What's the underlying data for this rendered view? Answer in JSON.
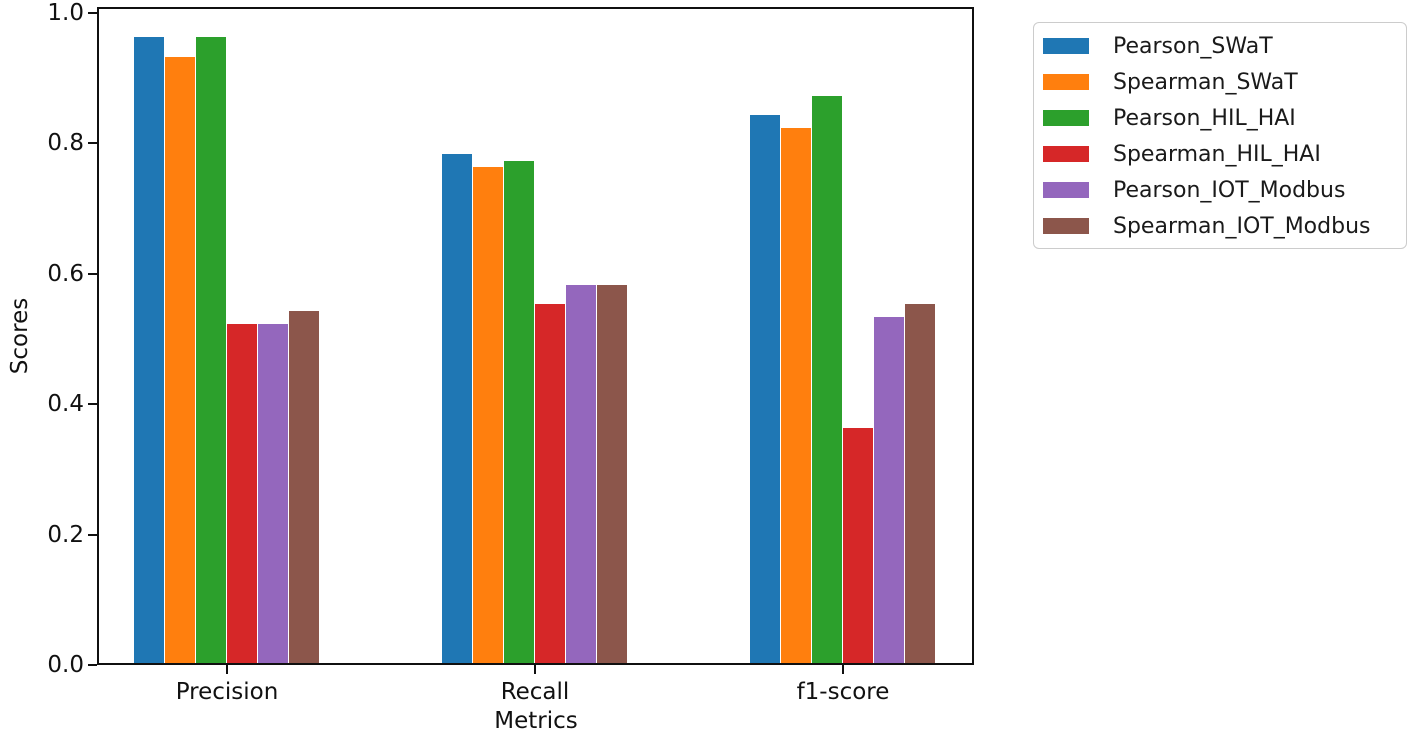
{
  "chart_data": {
    "type": "bar",
    "title": "",
    "xlabel": "Metrics",
    "ylabel": "Scores",
    "categories": [
      "Precision",
      "Recall",
      "f1-score"
    ],
    "series": [
      {
        "name": "Pearson_SWaT",
        "color": "#1f77b4",
        "values": [
          0.96,
          0.78,
          0.84
        ]
      },
      {
        "name": "Spearman_SWaT",
        "color": "#ff7f0e",
        "values": [
          0.93,
          0.76,
          0.82
        ]
      },
      {
        "name": "Pearson_HIL_HAI",
        "color": "#2ca02c",
        "values": [
          0.96,
          0.77,
          0.87
        ]
      },
      {
        "name": "Spearman_HIL_HAI",
        "color": "#d62728",
        "values": [
          0.52,
          0.55,
          0.36
        ]
      },
      {
        "name": "Pearson_IOT_Modbus",
        "color": "#9467bd",
        "values": [
          0.52,
          0.58,
          0.53
        ]
      },
      {
        "name": "Spearman_IOT_Modbus",
        "color": "#8c564b",
        "values": [
          0.54,
          0.58,
          0.55
        ]
      }
    ],
    "yticks": [
      "0.0",
      "0.2",
      "0.4",
      "0.6",
      "0.8",
      "1.0"
    ],
    "ylim": [
      0.0,
      1.0
    ],
    "grid": false,
    "legend_position": "outside upper right",
    "background_color": "#ffffff",
    "axis_color": "#101010"
  }
}
